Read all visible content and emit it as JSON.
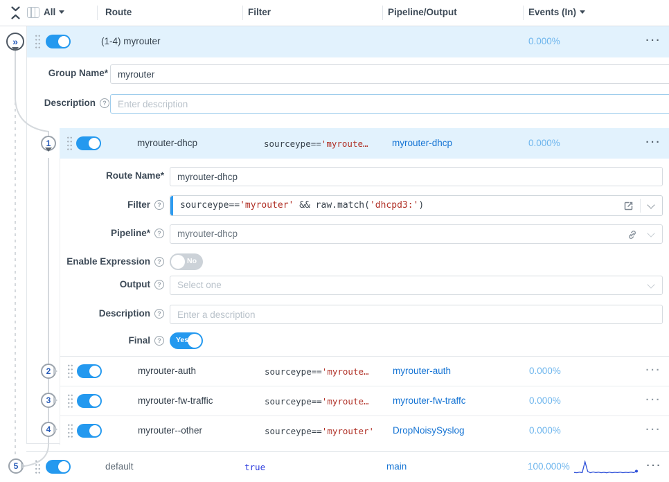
{
  "header": {
    "all_label": "All",
    "columns": {
      "route": "Route",
      "filter": "Filter",
      "pipeline": "Pipeline/Output",
      "events": "Events (In)"
    }
  },
  "group_row": {
    "name": "(1-4) myrouter",
    "events": "0.000%"
  },
  "group_form": {
    "name_label": "Group Name*",
    "name_value": "myrouter",
    "desc_label": "Description",
    "desc_placeholder": "Enter description"
  },
  "route_form": {
    "name_label": "Route Name*",
    "name_value": "myrouter-dhcp",
    "filter_label": "Filter",
    "filter_tokens": {
      "t1": "sourceype==",
      "t2": "'myrouter'",
      "t3": " && raw.match(",
      "t4": "'dhcpd3:'",
      "t5": ")"
    },
    "pipeline_label": "Pipeline*",
    "pipeline_value": "myrouter-dhcp",
    "enable_expression_label": "Enable Expression",
    "enable_expression_state": "No",
    "output_label": "Output",
    "output_placeholder": "Select one",
    "desc_label": "Description",
    "desc_placeholder": "Enter a description",
    "final_label": "Final",
    "final_state": "Yes"
  },
  "routes": [
    {
      "num": "1",
      "name": "myrouter-dhcp",
      "filter_expr": "sourceype==",
      "filter_str": "'myroute…",
      "pipeline": "myrouter-dhcp",
      "events": "0.000%"
    },
    {
      "num": "2",
      "name": "myrouter-auth",
      "filter_expr": "sourceype==",
      "filter_str": "'myroute…",
      "pipeline": "myrouter-auth",
      "events": "0.000%"
    },
    {
      "num": "3",
      "name": "myrouter-fw-traffic",
      "filter_expr": "sourceype==",
      "filter_str": "'myroute…",
      "pipeline": "myrouter-fw-traffc",
      "events": "0.000%"
    },
    {
      "num": "4",
      "name": "myrouter--other",
      "filter_expr": "sourceype==",
      "filter_str": "'myrouter'",
      "pipeline": "DropNoisySyslog",
      "events": "0.000%"
    }
  ],
  "default_route": {
    "num": "5",
    "name": "default",
    "filter": "true",
    "pipeline": "main",
    "events": "100.000%",
    "sparkline": [
      10,
      8,
      12,
      9,
      96,
      18,
      8,
      14,
      9,
      12,
      8,
      11,
      7,
      12,
      8,
      11,
      9,
      12,
      8,
      11,
      9,
      13,
      9,
      20
    ]
  },
  "pins": {
    "expand_glyph": "»"
  },
  "icons": {
    "help": "?",
    "more": "···"
  },
  "colors": {
    "toggle_on": "#2499ef",
    "row_highlight": "#e2f2fd",
    "link": "#1574d4",
    "events_text": "#6db5ed",
    "code_string": "#b03026",
    "code_keyword": "#2838dd",
    "filter_accent": "#2d9bf0",
    "sparkline": "#2d4fd8"
  }
}
